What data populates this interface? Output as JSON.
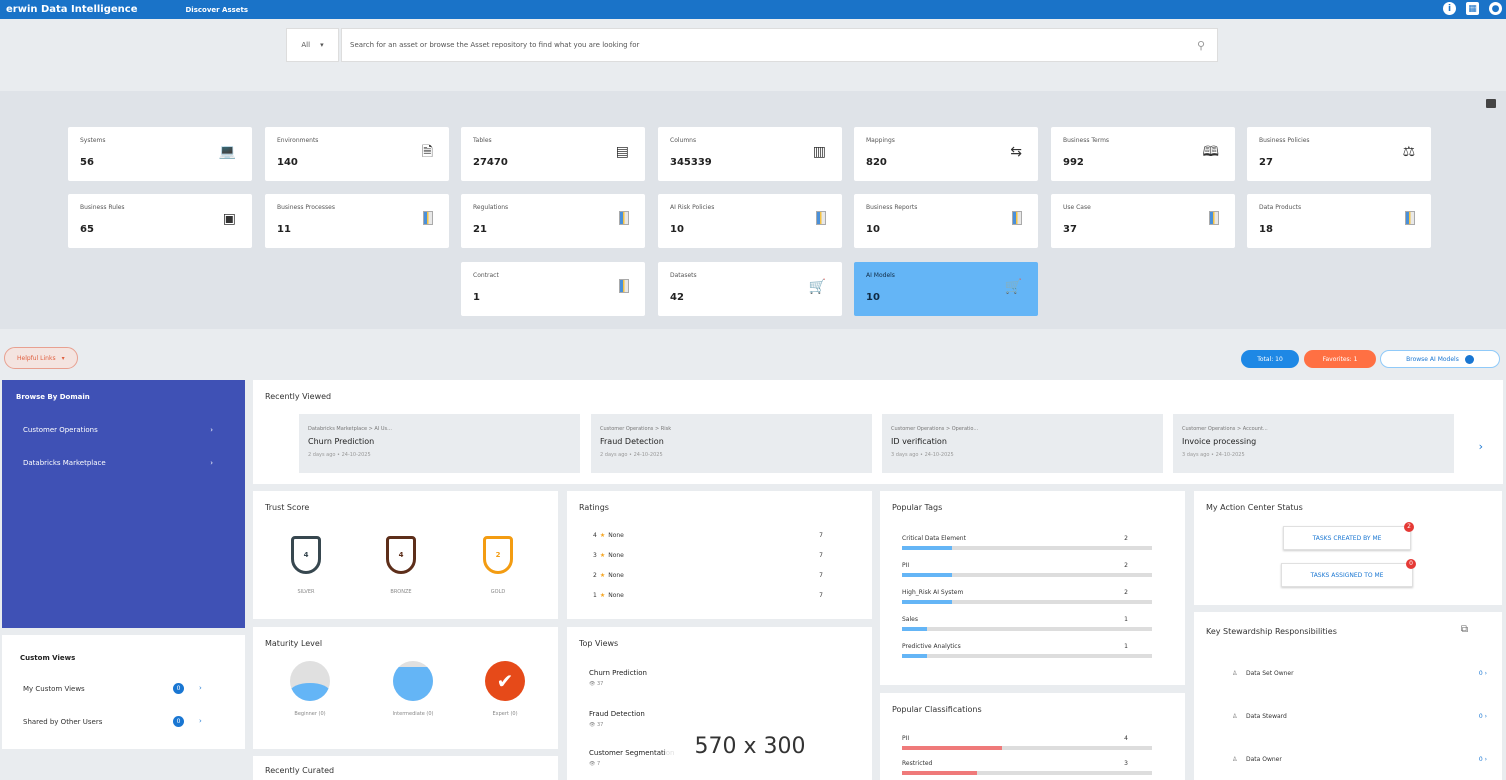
{
  "topbar": {
    "brand": "erwin Data Intelligence",
    "nav": "Discover Assets",
    "icons": [
      "info-icon",
      "grid-icon",
      "user-icon"
    ]
  },
  "search": {
    "scope": "All",
    "placeholder": "Search for an asset or browse the Asset repository to find what you are looking for"
  },
  "stats": [
    {
      "label": "Systems",
      "value": "56",
      "icon": "laptop-icon"
    },
    {
      "label": "Environments",
      "value": "140",
      "icon": "document-icon"
    },
    {
      "label": "Tables",
      "value": "27470",
      "icon": "table-icon"
    },
    {
      "label": "Columns",
      "value": "345339",
      "icon": "columns-icon"
    },
    {
      "label": "Mappings",
      "value": "820",
      "icon": "mapping-icon"
    },
    {
      "label": "Business Terms",
      "value": "992",
      "icon": "book-open-icon"
    },
    {
      "label": "Business Policies",
      "value": "27",
      "icon": "policy-icon"
    },
    {
      "label": "Business Rules",
      "value": "65",
      "icon": "rules-icon"
    },
    {
      "label": "Business Processes",
      "value": "11",
      "icon": "book-icon"
    },
    {
      "label": "Regulations",
      "value": "21",
      "icon": "book-icon"
    },
    {
      "label": "AI Risk Policies",
      "value": "10",
      "icon": "book-icon"
    },
    {
      "label": "Business Reports",
      "value": "10",
      "icon": "book-icon"
    },
    {
      "label": "Use Case",
      "value": "37",
      "icon": "book-icon"
    },
    {
      "label": "Data Products",
      "value": "18",
      "icon": "book-icon"
    },
    {
      "label": "Contract",
      "value": "1",
      "icon": "book-icon"
    },
    {
      "label": "Datasets",
      "value": "42",
      "icon": "cart-icon"
    },
    {
      "label": "AI Models",
      "value": "10",
      "icon": "cart-icon"
    }
  ],
  "midbar": {
    "helpful": "Helpful Links",
    "total": "Total: 10",
    "favorites": "Favorites: 1",
    "browse": "Browse AI Models"
  },
  "sidebar": {
    "title": "Browse By Domain",
    "items": [
      "Customer Operations",
      "Databricks Marketplace"
    ]
  },
  "custom_views": {
    "title": "Custom Views",
    "rows": [
      {
        "label": "My Custom Views",
        "count": "0"
      },
      {
        "label": "Shared by Other Users",
        "count": "0"
      }
    ]
  },
  "recently_viewed": {
    "title": "Recently Viewed",
    "items": [
      {
        "crumb": "Databricks Marketplace > AI Us...",
        "name": "Churn Prediction",
        "date": "2 days ago • 24-10-2025"
      },
      {
        "crumb": "Customer Operations > Risk",
        "name": "Fraud Detection",
        "date": "2 days ago • 24-10-2025"
      },
      {
        "crumb": "Customer Operations > Operatio...",
        "name": "ID verification",
        "date": "3 days ago • 24-10-2025"
      },
      {
        "crumb": "Customer Operations > Account...",
        "name": "Invoice processing",
        "date": "3 days ago • 24-10-2025"
      }
    ]
  },
  "trust_score": {
    "title": "Trust Score",
    "items": [
      {
        "value": "4",
        "label": "SILVER",
        "color": "#37474f"
      },
      {
        "value": "4",
        "label": "BRONZE",
        "color": "#5d2e1a"
      },
      {
        "value": "2",
        "label": "GOLD",
        "color": "#f39c12"
      }
    ]
  },
  "ratings": {
    "title": "Ratings",
    "rows": [
      {
        "stars": "4",
        "label": "None",
        "count": "7"
      },
      {
        "stars": "3",
        "label": "None",
        "count": "7"
      },
      {
        "stars": "2",
        "label": "None",
        "count": "7"
      },
      {
        "stars": "1",
        "label": "None",
        "count": "7"
      }
    ]
  },
  "popular_tags": {
    "title": "Popular Tags",
    "rows": [
      {
        "label": "Critical Data Element",
        "count": "2",
        "fill": 0.2
      },
      {
        "label": "PII",
        "count": "2",
        "fill": 0.2
      },
      {
        "label": "High_Risk AI System",
        "count": "2",
        "fill": 0.2
      },
      {
        "label": "Sales",
        "count": "1",
        "fill": 0.1
      },
      {
        "label": "Predictive Analytics",
        "count": "1",
        "fill": 0.1
      }
    ]
  },
  "popular_classifications": {
    "title": "Popular Classifications",
    "rows": [
      {
        "label": "PII",
        "count": "4",
        "fill": 0.4
      },
      {
        "label": "Restricted",
        "count": "3",
        "fill": 0.3
      }
    ]
  },
  "action_center": {
    "title": "My Action Center Status",
    "created": "TASKS CREATED BY ME",
    "created_count": "2",
    "assigned": "TASKS ASSIGNED TO ME",
    "assigned_count": "0"
  },
  "maturity": {
    "title": "Maturity Level",
    "items": [
      {
        "label": "Beginner (0)"
      },
      {
        "label": "Intermediate (0)"
      },
      {
        "label": "Expert (0)"
      }
    ]
  },
  "top_views": {
    "title": "Top Views",
    "items": [
      {
        "name": "Churn Prediction",
        "views": "37"
      },
      {
        "name": "Fraud Detection",
        "views": "37"
      },
      {
        "name": "Customer Segmentation",
        "views": "7"
      }
    ]
  },
  "stewardship": {
    "title": "Key Stewardship Responsibilities",
    "rows": [
      {
        "label": "Data Set Owner",
        "count": "0"
      },
      {
        "label": "Data Steward",
        "count": "0"
      },
      {
        "label": "Data Owner",
        "count": "0"
      }
    ]
  },
  "recently_curated": {
    "title": "Recently Curated"
  },
  "overlay": "570 x 300"
}
